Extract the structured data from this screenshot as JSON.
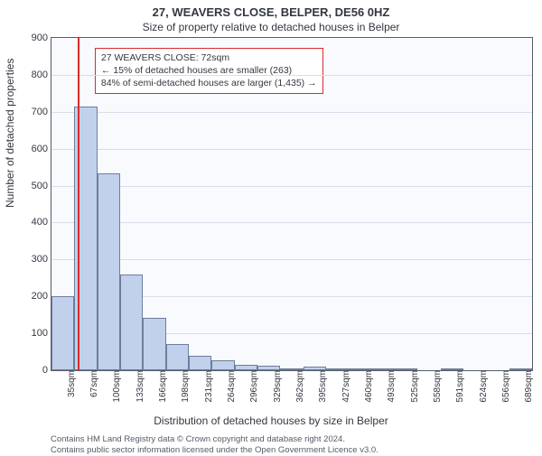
{
  "header": {
    "title": "27, WEAVERS CLOSE, BELPER, DE56 0HZ",
    "subtitle": "Size of property relative to detached houses in Belper"
  },
  "chart": {
    "type": "histogram",
    "ylabel": "Number of detached properties",
    "xlabel": "Distribution of detached houses by size in Belper",
    "ylim": [
      0,
      900
    ],
    "ytick_step": 100,
    "xticks": [
      "35sqm",
      "67sqm",
      "100sqm",
      "133sqm",
      "166sqm",
      "198sqm",
      "231sqm",
      "264sqm",
      "296sqm",
      "329sqm",
      "362sqm",
      "395sqm",
      "427sqm",
      "460sqm",
      "493sqm",
      "525sqm",
      "558sqm",
      "591sqm",
      "624sqm",
      "656sqm",
      "689sqm"
    ],
    "bar_values": [
      200,
      715,
      532,
      260,
      142,
      70,
      40,
      28,
      15,
      12,
      6,
      10,
      4,
      2,
      2,
      1,
      0,
      1,
      0,
      0,
      1
    ],
    "bar_color": "#c1d1ec",
    "bar_border": "#6d7e9c",
    "background_color": "#f8fafd",
    "grid_color": "#d7dee8",
    "axis_color": "#555c66",
    "marker": {
      "x_index_fractional": 1.15,
      "color": "#d92b2b"
    },
    "annotation": {
      "lines": [
        "27 WEAVERS CLOSE: 72sqm",
        "← 15% of detached houses are smaller (263)",
        "84% of semi-detached houses are larger (1,435) →"
      ],
      "border_color": "#d92b2b",
      "top_offset_pct": 3,
      "left_offset_pct": 9
    }
  },
  "footer": {
    "line1": "Contains HM Land Registry data © Crown copyright and database right 2024.",
    "line2": "Contains public sector information licensed under the Open Government Licence v3.0."
  }
}
